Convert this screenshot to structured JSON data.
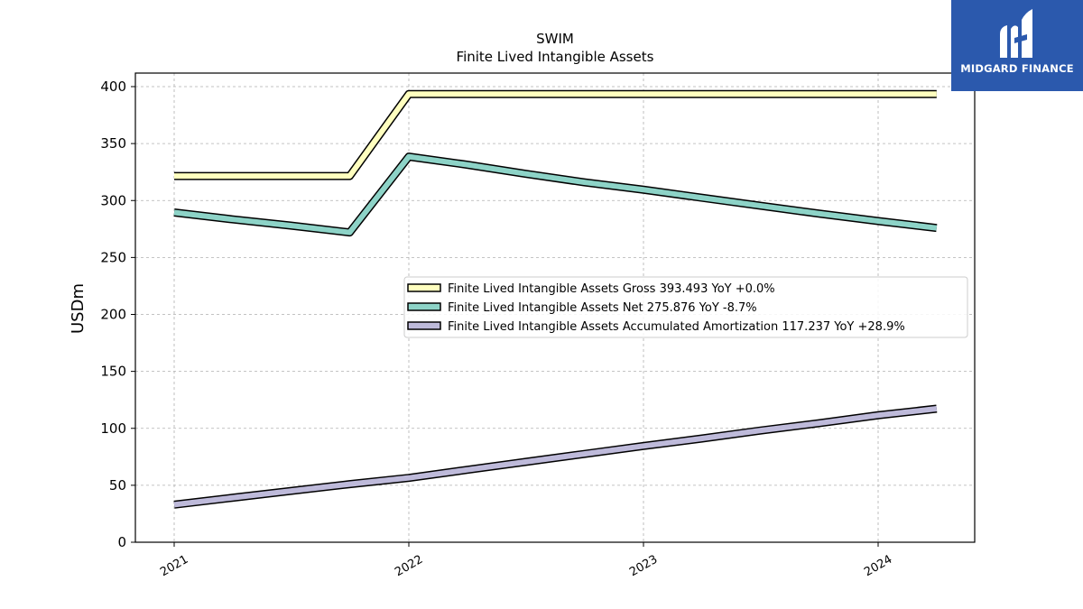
{
  "brand": {
    "name": "MIDGARD FINANCE",
    "bg_color": "#2b59ad"
  },
  "chart_data": {
    "type": "line",
    "title": "SWIM",
    "subtitle": "Finite Lived Intangible Assets",
    "ylabel": "USDm",
    "xlabel": "",
    "ylim": [
      0,
      412
    ],
    "yticks": [
      0,
      50,
      100,
      150,
      200,
      250,
      300,
      350,
      400
    ],
    "x_ticks": [
      "2021",
      "2022",
      "2023",
      "2024"
    ],
    "grid": true,
    "legend_position": "center-right",
    "x": [
      "2020-12-31",
      "2021-03-31",
      "2021-06-30",
      "2021-09-30",
      "2021-12-31",
      "2022-03-31",
      "2022-06-30",
      "2022-09-30",
      "2022-12-31",
      "2023-03-31",
      "2023-06-30",
      "2023-09-30",
      "2023-12-31",
      "2024-03-31"
    ],
    "series": [
      {
        "name": "Finite Lived Intangible Assets Gross",
        "legend_label": "Finite Lived Intangible Assets Gross  393.493 YoY +0.0%",
        "color": "#ffffbf",
        "values": [
          321.5,
          321.5,
          321.5,
          321.5,
          393.5,
          393.5,
          393.5,
          393.5,
          393.5,
          393.5,
          393.5,
          393.5,
          393.5,
          393.5
        ]
      },
      {
        "name": "Finite Lived Intangible Assets Net",
        "legend_label": "Finite Lived Intangible Assets Net  275.876 YoY -8.7%",
        "color": "#8dd3c7",
        "values": [
          289.5,
          283.5,
          278.0,
          272.0,
          338.5,
          331.5,
          323.5,
          316.0,
          309.5,
          302.5,
          295.5,
          288.5,
          282.0,
          275.9
        ]
      },
      {
        "name": "Finite Lived Intangible Assets Accumulated Amortization",
        "legend_label": "Finite Lived Intangible Assets Accumulated Amortization  117.237 YoY +28.9%",
        "color": "#bebada",
        "values": [
          33.0,
          39.0,
          45.0,
          51.0,
          56.5,
          63.5,
          70.5,
          77.5,
          84.5,
          91.0,
          98.0,
          104.5,
          111.5,
          117.2
        ]
      }
    ]
  }
}
